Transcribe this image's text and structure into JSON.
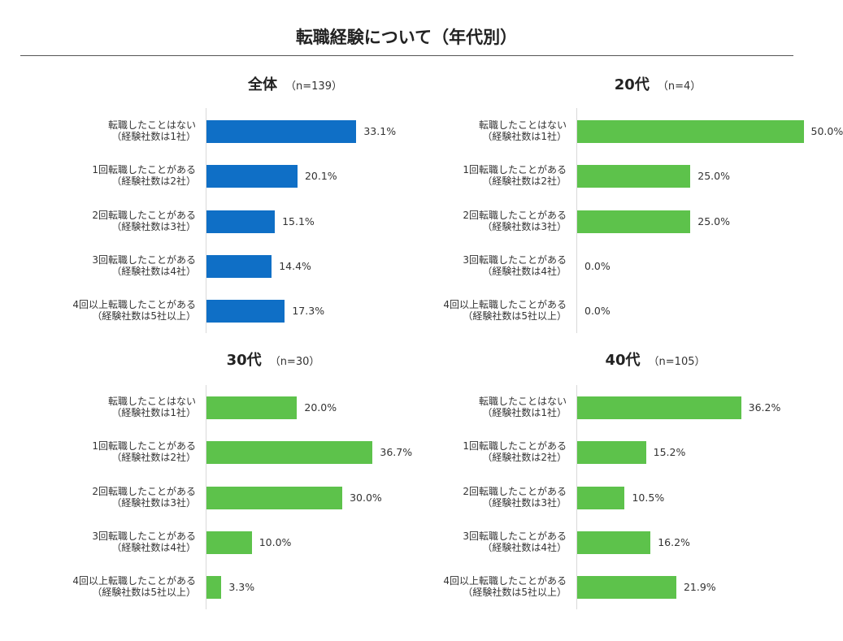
{
  "page": {
    "title": "転職経験について（年代別）"
  },
  "colors": {
    "total": "#0f6fc6",
    "age": "#5dc24b"
  },
  "chart_data": [
    {
      "type": "bar",
      "orientation": "horizontal",
      "title": "全体",
      "subtitle": "（n=139）",
      "categories": [
        [
          "転職したことはない",
          "（経験社数は1社）"
        ],
        [
          "1回転職したことがある",
          "（経験社数は2社）"
        ],
        [
          "2回転職したことがある",
          "（経験社数は3社）"
        ],
        [
          "3回転職したことがある",
          "（経験社数は4社）"
        ],
        [
          "4回以上転職したことがある",
          "（経験社数は5社以上）"
        ]
      ],
      "values": [
        33.1,
        20.1,
        15.1,
        14.4,
        17.3
      ],
      "value_labels": [
        "33.1%",
        "20.1%",
        "15.1%",
        "14.4%",
        "17.3%"
      ],
      "color": "#0f6fc6"
    },
    {
      "type": "bar",
      "orientation": "horizontal",
      "title": "20代",
      "subtitle": "（n=4）",
      "categories": [
        [
          "転職したことはない",
          "（経験社数は1社）"
        ],
        [
          "1回転職したことがある",
          "（経験社数は2社）"
        ],
        [
          "2回転職したことがある",
          "（経験社数は3社）"
        ],
        [
          "3回転職したことがある",
          "（経験社数は4社）"
        ],
        [
          "4回以上転職したことがある",
          "（経験社数は5社以上）"
        ]
      ],
      "values": [
        50.0,
        25.0,
        25.0,
        0.0,
        0.0
      ],
      "value_labels": [
        "50.0%",
        "25.0%",
        "25.0%",
        "0.0%",
        "0.0%"
      ],
      "color": "#5dc24b"
    },
    {
      "type": "bar",
      "orientation": "horizontal",
      "title": "30代",
      "subtitle": "（n=30）",
      "categories": [
        [
          "転職したことはない",
          "（経験社数は1社）"
        ],
        [
          "1回転職したことがある",
          "（経験社数は2社）"
        ],
        [
          "2回転職したことがある",
          "（経験社数は3社）"
        ],
        [
          "3回転職したことがある",
          "（経験社数は4社）"
        ],
        [
          "4回以上転職したことがある",
          "（経験社数は5社以上）"
        ]
      ],
      "values": [
        20.0,
        36.7,
        30.0,
        10.0,
        3.3
      ],
      "value_labels": [
        "20.0%",
        "36.7%",
        "30.0%",
        "10.0%",
        "3.3%"
      ],
      "color": "#5dc24b"
    },
    {
      "type": "bar",
      "orientation": "horizontal",
      "title": "40代",
      "subtitle": "（n=105）",
      "categories": [
        [
          "転職したことはない",
          "（経験社数は1社）"
        ],
        [
          "1回転職したことがある",
          "（経験社数は2社）"
        ],
        [
          "2回転職したことがある",
          "（経験社数は3社）"
        ],
        [
          "3回転職したことがある",
          "（経験社数は4社）"
        ],
        [
          "4回以上転職したことがある",
          "（経験社数は5社以上）"
        ]
      ],
      "values": [
        36.2,
        15.2,
        10.5,
        16.2,
        21.9
      ],
      "value_labels": [
        "36.2%",
        "15.2%",
        "10.5%",
        "16.2%",
        "21.9%"
      ],
      "color": "#5dc24b"
    }
  ]
}
